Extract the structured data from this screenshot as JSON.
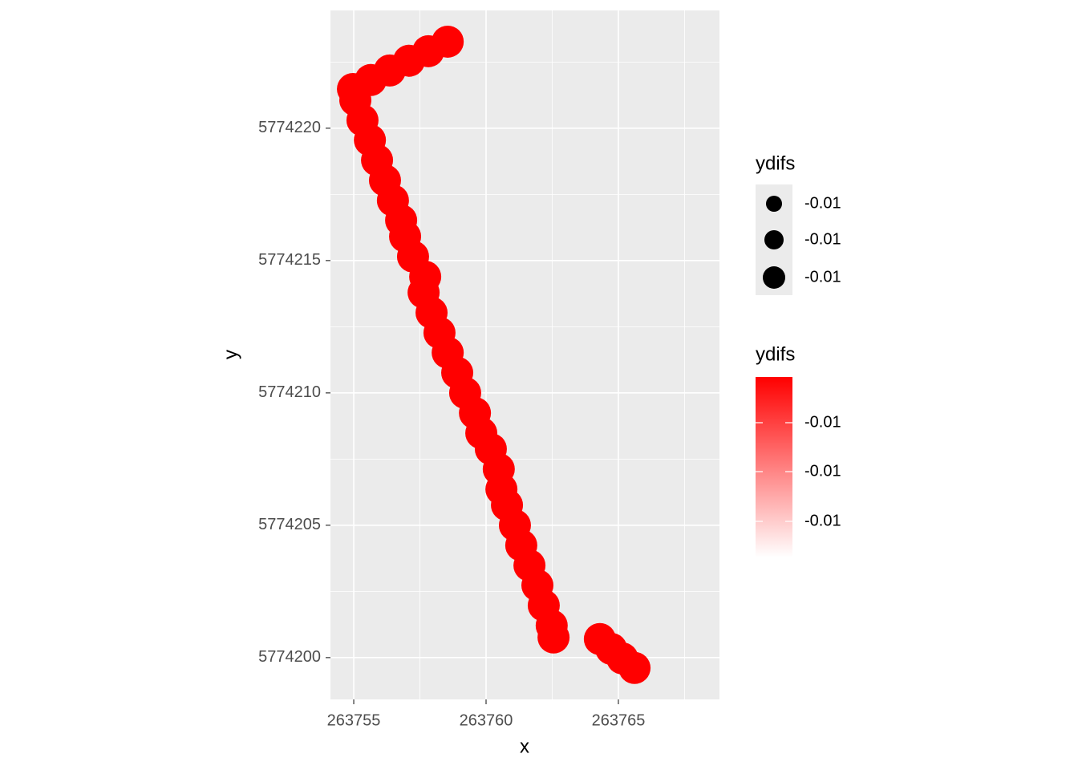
{
  "chart_data": {
    "type": "scatter",
    "x_label": "x",
    "y_label": "y",
    "color": "#ff0000",
    "grid": true,
    "xlim": [
      263754.12,
      263768.82
    ],
    "ylim": [
      5774198.42,
      5774224.45
    ],
    "xticks": [
      263755,
      263760,
      263765
    ],
    "yticks": [
      5774200,
      5774205,
      5774210,
      5774215,
      5774220
    ],
    "x": [
      263758.55,
      263757.82,
      263757.09,
      263756.36,
      263755.64,
      263754.97,
      263755.06,
      263755.33,
      263755.61,
      263755.88,
      263756.18,
      263756.48,
      263756.79,
      263756.94,
      263757.24,
      263757.7,
      263757.64,
      263757.94,
      263758.24,
      263758.55,
      263758.91,
      263759.21,
      263759.58,
      263759.82,
      263760.18,
      263760.48,
      263760.58,
      263760.79,
      263761.09,
      263761.33,
      263761.64,
      263761.94,
      263762.18,
      263762.48,
      263762.55,
      263764.3,
      263764.73,
      263765.15,
      263765.61
    ],
    "y": [
      5774223.27,
      5774222.91,
      5774222.55,
      5774222.18,
      5774221.82,
      5774221.48,
      5774221.06,
      5774220.3,
      5774219.55,
      5774218.79,
      5774218.03,
      5774217.27,
      5774216.52,
      5774215.91,
      5774215.15,
      5774214.39,
      5774213.79,
      5774213.03,
      5774212.27,
      5774211.52,
      5774210.76,
      5774210.0,
      5774209.24,
      5774208.48,
      5774207.88,
      5774207.12,
      5774206.36,
      5774205.76,
      5774205.0,
      5774204.24,
      5774203.48,
      5774202.73,
      5774201.97,
      5774201.21,
      5774200.76,
      5774200.7,
      5774200.33,
      5774199.97,
      5774199.61
    ],
    "size_legend": {
      "title": "ydifs",
      "labels": [
        -0.01,
        -0.01,
        -0.01
      ]
    },
    "color_legend": {
      "title": "ydifs",
      "labels": [
        -0.01,
        -0.01,
        -0.01
      ]
    }
  }
}
